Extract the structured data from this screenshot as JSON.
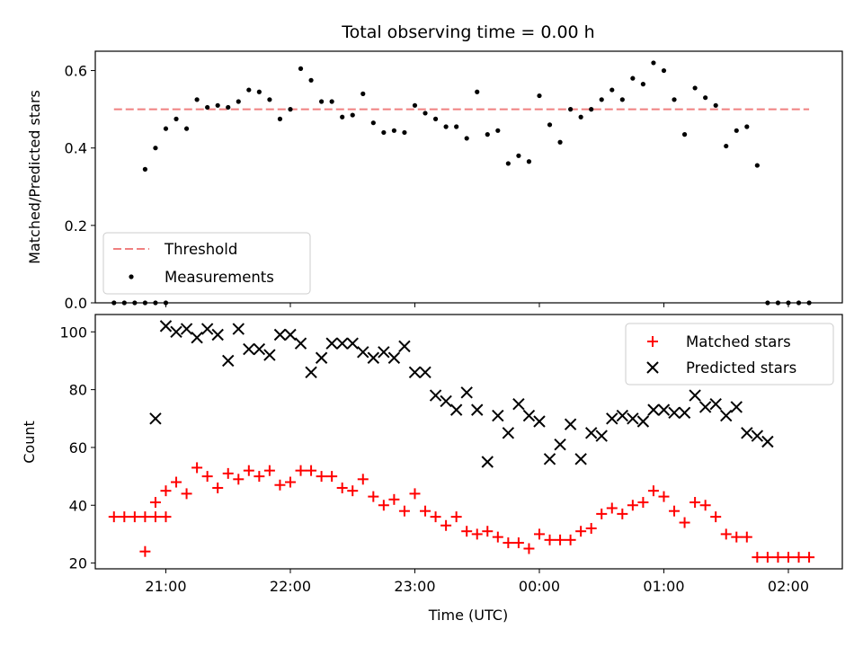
{
  "chart_data": [
    {
      "type": "scatter",
      "panel": "top",
      "title": "Total observing time = 0.00 h",
      "xlabel": "",
      "ylabel": "Matched/Predicted stars",
      "xlim": [
        "20:26",
        "02:26"
      ],
      "ylim": [
        0,
        0.65
      ],
      "yticks": [
        "0.0",
        "0.2",
        "0.4",
        "0.6"
      ],
      "legend": {
        "placement": "lower-left",
        "entries": [
          "Threshold",
          "Measurements"
        ]
      },
      "threshold": {
        "name": "Threshold",
        "value": 0.5,
        "x_start": "20:35",
        "x_end": "02:10",
        "color": "#f08080",
        "style": "dashed"
      },
      "series": [
        {
          "name": "Measurements",
          "marker": "dot",
          "color": "#000000",
          "x": [
            "20:35",
            "20:40",
            "20:45",
            "20:50",
            "20:55",
            "21:00",
            "20:50",
            "20:55",
            "21:00",
            "21:05",
            "21:10",
            "21:15",
            "21:20",
            "21:25",
            "21:30",
            "21:35",
            "21:40",
            "21:45",
            "21:50",
            "21:55",
            "22:00",
            "22:05",
            "22:10",
            "22:15",
            "22:20",
            "22:25",
            "22:30",
            "22:35",
            "22:40",
            "22:45",
            "22:50",
            "22:55",
            "23:00",
            "23:05",
            "23:10",
            "23:15",
            "23:20",
            "23:25",
            "23:30",
            "23:35",
            "23:40",
            "23:45",
            "23:50",
            "23:55",
            "00:00",
            "00:05",
            "00:10",
            "00:15",
            "00:20",
            "00:25",
            "00:30",
            "00:35",
            "00:40",
            "00:45",
            "00:50",
            "00:55",
            "01:00",
            "01:05",
            "01:10",
            "01:15",
            "01:20",
            "01:25",
            "01:30",
            "01:35",
            "01:40",
            "01:45",
            "01:50",
            "01:55",
            "02:00",
            "02:05",
            "02:10"
          ],
          "y": [
            0,
            0,
            0,
            0,
            0,
            0,
            0.345,
            0.4,
            0.45,
            0.475,
            0.45,
            0.525,
            0.505,
            0.51,
            0.505,
            0.52,
            0.55,
            0.545,
            0.525,
            0.475,
            0.5,
            0.605,
            0.575,
            0.52,
            0.52,
            0.48,
            0.485,
            0.54,
            0.465,
            0.44,
            0.445,
            0.44,
            0.51,
            0.49,
            0.475,
            0.455,
            0.455,
            0.425,
            0.545,
            0.435,
            0.445,
            0.36,
            0.38,
            0.365,
            0.535,
            0.46,
            0.415,
            0.5,
            0.48,
            0.5,
            0.525,
            0.55,
            0.525,
            0.58,
            0.565,
            0.62,
            0.6,
            0.525,
            0.435,
            0.555,
            0.53,
            0.51,
            0.405,
            0.445,
            0.455,
            0.355,
            0,
            0,
            0,
            0,
            0
          ]
        }
      ]
    },
    {
      "type": "scatter",
      "panel": "bottom",
      "xlabel": "Time (UTC)",
      "ylabel": "Count",
      "xlim": [
        "20:26",
        "02:26"
      ],
      "ylim": [
        18,
        106
      ],
      "xticks": [
        "21:00",
        "22:00",
        "23:00",
        "00:00",
        "01:00",
        "02:00"
      ],
      "yticks": [
        "20",
        "40",
        "60",
        "80",
        "100"
      ],
      "legend": {
        "placement": "top-right",
        "entries": [
          "Matched stars",
          "Predicted stars"
        ]
      },
      "series": [
        {
          "name": "Matched stars",
          "marker": "plus",
          "color": "#ff0000",
          "x": [
            "20:35",
            "20:40",
            "20:45",
            "20:50",
            "20:55",
            "21:00",
            "20:50",
            "20:55",
            "21:00",
            "21:05",
            "21:10",
            "21:15",
            "21:20",
            "21:25",
            "21:30",
            "21:35",
            "21:40",
            "21:45",
            "21:50",
            "21:55",
            "22:00",
            "22:05",
            "22:10",
            "22:15",
            "22:20",
            "22:25",
            "22:30",
            "22:35",
            "22:40",
            "22:45",
            "22:50",
            "22:55",
            "23:00",
            "23:05",
            "23:10",
            "23:15",
            "23:20",
            "23:25",
            "23:30",
            "23:35",
            "23:40",
            "23:45",
            "23:50",
            "23:55",
            "00:00",
            "00:05",
            "00:10",
            "00:15",
            "00:20",
            "00:25",
            "00:30",
            "00:35",
            "00:40",
            "00:45",
            "00:50",
            "00:55",
            "01:00",
            "01:05",
            "01:10",
            "01:15",
            "01:20",
            "01:25",
            "01:30",
            "01:35",
            "01:40",
            "01:45",
            "01:50",
            "01:55",
            "02:00",
            "02:05",
            "02:10"
          ],
          "y": [
            36,
            36,
            36,
            36,
            36,
            36,
            24,
            41,
            45,
            48,
            44,
            53,
            50,
            46,
            51,
            49,
            52,
            50,
            52,
            47,
            48,
            52,
            52,
            50,
            50,
            46,
            45,
            49,
            43,
            40,
            42,
            38,
            44,
            38,
            36,
            33,
            36,
            31,
            30,
            31,
            29,
            27,
            27,
            25,
            30,
            28,
            28,
            28,
            31,
            32,
            37,
            39,
            37,
            40,
            41,
            45,
            43,
            38,
            34,
            41,
            40,
            36,
            30,
            29,
            29,
            22,
            22,
            22,
            22,
            22,
            22
          ]
        },
        {
          "name": "Predicted stars",
          "marker": "x",
          "color": "#000000",
          "x": [
            "20:55",
            "21:00",
            "21:05",
            "21:10",
            "21:15",
            "21:20",
            "21:25",
            "21:30",
            "21:35",
            "21:40",
            "21:45",
            "21:50",
            "21:55",
            "22:00",
            "22:05",
            "22:10",
            "22:15",
            "22:20",
            "22:25",
            "22:30",
            "22:35",
            "22:40",
            "22:45",
            "22:50",
            "22:55",
            "23:00",
            "23:05",
            "23:10",
            "23:15",
            "23:20",
            "23:25",
            "23:30",
            "23:35",
            "23:40",
            "23:45",
            "23:50",
            "23:55",
            "00:00",
            "00:05",
            "00:10",
            "00:15",
            "00:20",
            "00:25",
            "00:30",
            "00:35",
            "00:40",
            "00:45",
            "00:50",
            "00:55",
            "01:00",
            "01:05",
            "01:10",
            "01:15",
            "01:20",
            "01:25",
            "01:30",
            "01:35",
            "01:40",
            "01:45",
            "01:50"
          ],
          "y": [
            70,
            102,
            100,
            101,
            98,
            101,
            99,
            90,
            101,
            94,
            94,
            92,
            99,
            99,
            96,
            86,
            91,
            96,
            96,
            96,
            93,
            91,
            93,
            91,
            95,
            86,
            86,
            78,
            76,
            73,
            79,
            73,
            55,
            71,
            65,
            75,
            71,
            69,
            56,
            61,
            68,
            56,
            65,
            64,
            70,
            71,
            70,
            69,
            73,
            73,
            72,
            72,
            78,
            74,
            75,
            71,
            74,
            65,
            64,
            62
          ]
        }
      ]
    }
  ]
}
